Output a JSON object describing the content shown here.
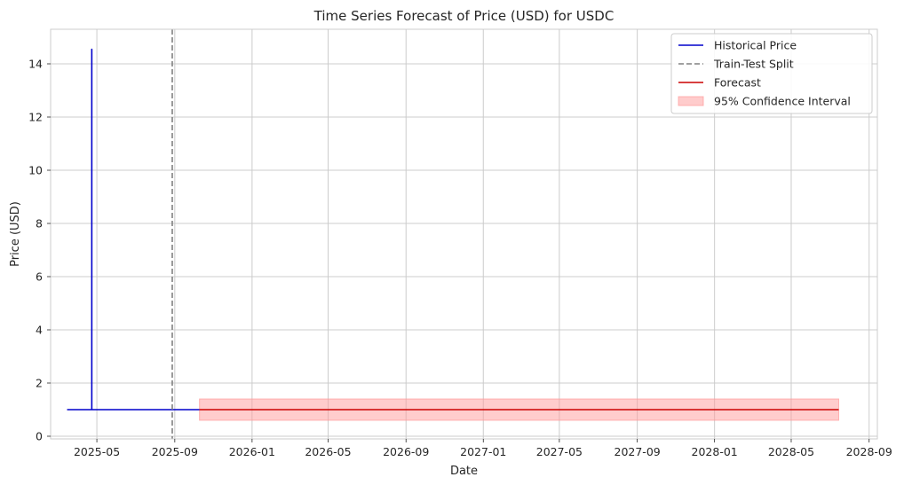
{
  "chart_data": {
    "type": "line",
    "title": "Time Series Forecast of Price (USD) for USDC",
    "xlabel": "Date",
    "ylabel": "Price (USD)",
    "xlim": [
      "2025-02-17",
      "2028-09-14"
    ],
    "ylim": [
      -0.1,
      15.3
    ],
    "x_ticks": [
      "2025-05",
      "2025-09",
      "2026-01",
      "2026-05",
      "2026-09",
      "2027-01",
      "2027-05",
      "2027-09",
      "2028-01",
      "2028-05",
      "2028-09"
    ],
    "y_ticks": [
      0,
      2,
      4,
      6,
      8,
      10,
      12,
      14
    ],
    "grid": true,
    "legend_position": "top-right",
    "series": [
      {
        "name": "Historical Price",
        "color": "#0000cc",
        "style": "solid",
        "points": [
          [
            "2025-03-15",
            1.0
          ],
          [
            "2025-04-23",
            1.0
          ],
          [
            "2025-04-23",
            14.55
          ],
          [
            "2025-04-23",
            1.0
          ],
          [
            "2025-10-10",
            1.0
          ]
        ]
      },
      {
        "name": "Train-Test Split",
        "color": "#808080",
        "style": "dashed",
        "x": "2025-08-28"
      },
      {
        "name": "Forecast",
        "color": "#cc0000",
        "style": "solid",
        "points": [
          [
            "2025-10-10",
            1.0
          ],
          [
            "2028-07-15",
            1.0
          ]
        ]
      },
      {
        "name": "95% Confidence Interval",
        "color": "#ff9999",
        "style": "band",
        "x_start": "2025-10-10",
        "x_end": "2028-07-15",
        "lower": 0.6,
        "upper": 1.4
      }
    ]
  }
}
